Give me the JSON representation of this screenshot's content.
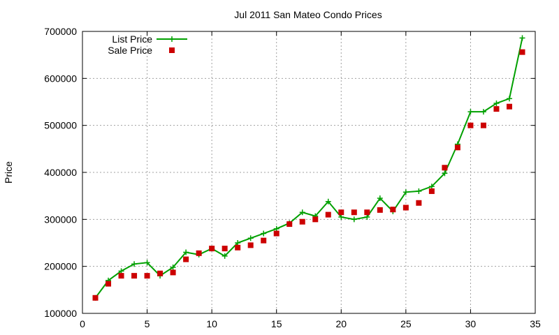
{
  "chart_data": {
    "type": "line",
    "title": "Jul 2011 San Mateo Condo Prices",
    "xlabel": "",
    "ylabel": "Price",
    "xlim": [
      0,
      35
    ],
    "ylim": [
      100000,
      700000
    ],
    "xticks": [
      0,
      5,
      10,
      15,
      20,
      25,
      30,
      35
    ],
    "yticks": [
      100000,
      200000,
      300000,
      400000,
      500000,
      600000,
      700000
    ],
    "grid": true,
    "legend_position": "top-left",
    "series": [
      {
        "name": "List Price",
        "style": "line-with-plus-markers",
        "color": "#00a000",
        "x": [
          1,
          2,
          3,
          4,
          5,
          6,
          7,
          8,
          9,
          10,
          11,
          12,
          13,
          14,
          15,
          16,
          17,
          18,
          19,
          20,
          21,
          22,
          23,
          24,
          25,
          26,
          27,
          28,
          29,
          30,
          31,
          32,
          33,
          34
        ],
        "y": [
          133000,
          170000,
          190000,
          205000,
          208000,
          180000,
          198000,
          230000,
          225000,
          238000,
          222000,
          250000,
          260000,
          270000,
          280000,
          292000,
          315000,
          307000,
          338000,
          305000,
          300000,
          305000,
          345000,
          317000,
          358000,
          360000,
          370000,
          398000,
          460000,
          529000,
          529000,
          547000,
          557000,
          686000
        ]
      },
      {
        "name": "Sale Price",
        "style": "square-markers",
        "color": "#cc0000",
        "x": [
          1,
          2,
          3,
          4,
          5,
          6,
          7,
          8,
          9,
          10,
          11,
          12,
          13,
          14,
          15,
          16,
          17,
          18,
          19,
          20,
          21,
          22,
          23,
          24,
          25,
          26,
          27,
          28,
          29,
          30,
          31,
          32,
          33,
          34
        ],
        "y": [
          133000,
          163000,
          180000,
          180000,
          180000,
          185000,
          187000,
          215000,
          228000,
          238000,
          238000,
          240000,
          245000,
          255000,
          270000,
          290000,
          295000,
          300000,
          310000,
          315000,
          315000,
          315000,
          320000,
          321000,
          325000,
          335000,
          360000,
          410000,
          453000,
          500000,
          500000,
          535000,
          540000,
          656000
        ]
      }
    ]
  }
}
